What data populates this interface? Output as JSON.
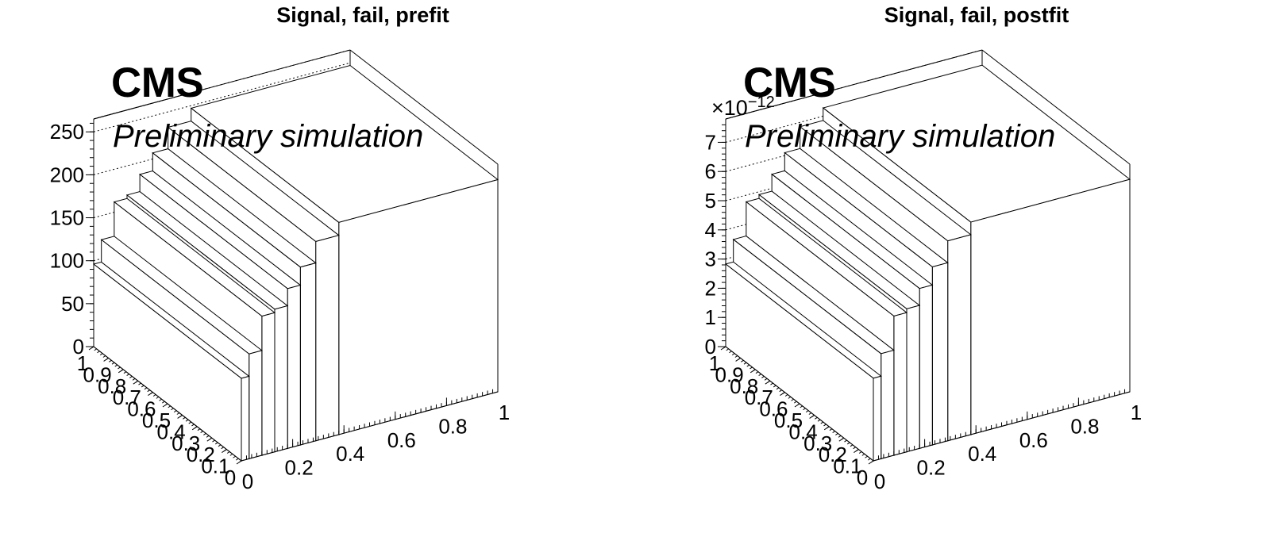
{
  "chart_data": [
    {
      "type": "bar3d",
      "title": "Signal, fail, prefit",
      "label_main": "CMS",
      "label_sub": "Preliminary simulation",
      "exponent_label": "",
      "xlabel": "",
      "ylabel": "",
      "zlabel": "",
      "xlim": [
        0,
        1
      ],
      "ylim": [
        0,
        1
      ],
      "zlim": [
        0,
        265
      ],
      "x_ticks": [
        "0",
        "0.2",
        "0.4",
        "0.6",
        "0.8",
        "1"
      ],
      "y_ticks": [
        "0",
        "0.1",
        "0.2",
        "0.3",
        "0.4",
        "0.5",
        "0.6",
        "0.7",
        "0.8",
        "0.9",
        "1"
      ],
      "z_ticks": [
        "0",
        "50",
        "100",
        "150",
        "200",
        "250"
      ],
      "z_tick_values": [
        0,
        50,
        100,
        150,
        200,
        250
      ],
      "x_bin_edges": [
        0,
        0.03,
        0.08,
        0.13,
        0.18,
        0.23,
        0.29,
        0.38,
        1.0
      ],
      "values": [
        96,
        122,
        162,
        166,
        186,
        207,
        232,
        247
      ],
      "grid": true,
      "legend": "none"
    },
    {
      "type": "bar3d",
      "title": "Signal, fail, postfit",
      "label_main": "CMS",
      "label_sub": "Preliminary simulation",
      "exponent_label": "×10",
      "exponent_power": "−12",
      "xlabel": "",
      "ylabel": "",
      "zlabel": "",
      "xlim": [
        0,
        1
      ],
      "ylim": [
        0,
        1
      ],
      "zlim": [
        0,
        7.8
      ],
      "x_ticks": [
        "0",
        "0.2",
        "0.4",
        "0.6",
        "0.8",
        "1"
      ],
      "y_ticks": [
        "0",
        "0.1",
        "0.2",
        "0.3",
        "0.4",
        "0.5",
        "0.6",
        "0.7",
        "0.8",
        "0.9",
        "1"
      ],
      "z_ticks": [
        "0",
        "1",
        "2",
        "3",
        "4",
        "5",
        "6",
        "7"
      ],
      "z_tick_values": [
        0,
        1,
        2,
        3,
        4,
        5,
        6,
        7
      ],
      "x_bin_edges": [
        0,
        0.03,
        0.08,
        0.13,
        0.18,
        0.23,
        0.29,
        0.38,
        1.0
      ],
      "values": [
        2.83,
        3.6,
        4.77,
        4.9,
        5.48,
        6.1,
        6.85,
        7.28
      ],
      "grid": true,
      "legend": "none"
    }
  ]
}
